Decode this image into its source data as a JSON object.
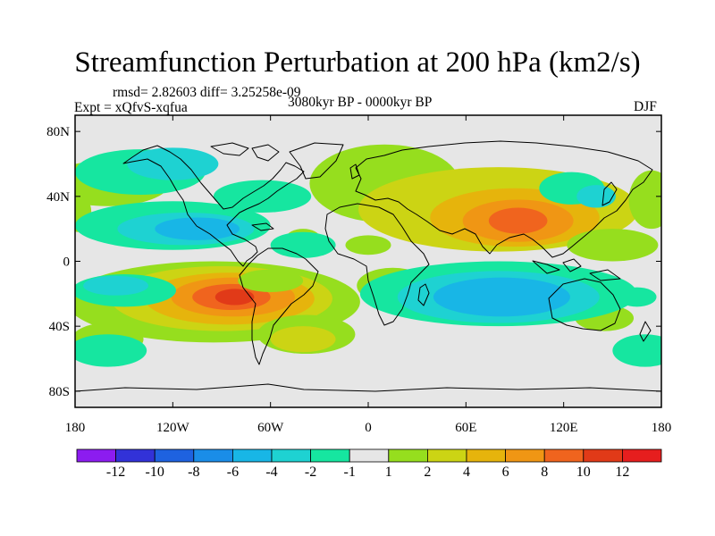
{
  "title": "Streamfunction Perturbation at 200 hPa (km2/s)",
  "stats_line": "rmsd= 2.82603 diff= 3.25258e-09",
  "experiment": "Expt = xQfvS-xqfua",
  "period": "3080kyr BP - 0000kyr BP",
  "season": "DJF",
  "map": {
    "projection": "cylindrical-equidistant",
    "lon_range": [
      -180,
      180
    ],
    "lat_range": [
      -90,
      90
    ],
    "lat_ticks": [
      {
        "value": 80,
        "label": "80N"
      },
      {
        "value": 40,
        "label": "40N"
      },
      {
        "value": 0,
        "label": "0"
      },
      {
        "value": -40,
        "label": "40S"
      },
      {
        "value": -80,
        "label": "80S"
      }
    ],
    "lon_ticks": [
      {
        "value": -180,
        "label": "180"
      },
      {
        "value": -120,
        "label": "120W"
      },
      {
        "value": -60,
        "label": "60W"
      },
      {
        "value": 0,
        "label": "0"
      },
      {
        "value": 60,
        "label": "60E"
      },
      {
        "value": 120,
        "label": "120E"
      },
      {
        "value": 180,
        "label": "180"
      }
    ],
    "missing_color": "#e6e6e6",
    "features": [
      {
        "name": "tibet-maximum",
        "lon": 90,
        "lat": 25,
        "value": 9.5
      },
      {
        "name": "south-america-maximum",
        "lon": -85,
        "lat": -22,
        "value": 11
      },
      {
        "name": "north-america-minimum",
        "lon": -110,
        "lat": 20,
        "value": -5
      },
      {
        "name": "indian-ocean-minimum",
        "lon": 80,
        "lat": -22,
        "value": -5.5
      }
    ]
  },
  "colorbar": {
    "levels": [
      "-12",
      "-10",
      "-8",
      "-6",
      "-4",
      "-2",
      "-1",
      "1",
      "2",
      "4",
      "6",
      "8",
      "10",
      "12"
    ],
    "colors": [
      "#8c1cf0",
      "#3232d8",
      "#1e62e0",
      "#1a8de8",
      "#18b6e6",
      "#1ed2d2",
      "#16e6a0",
      "#e6e6e6",
      "#96de1e",
      "#ccd414",
      "#e6b40c",
      "#f09614",
      "#f0641e",
      "#e13a18",
      "#e61e1e"
    ]
  }
}
